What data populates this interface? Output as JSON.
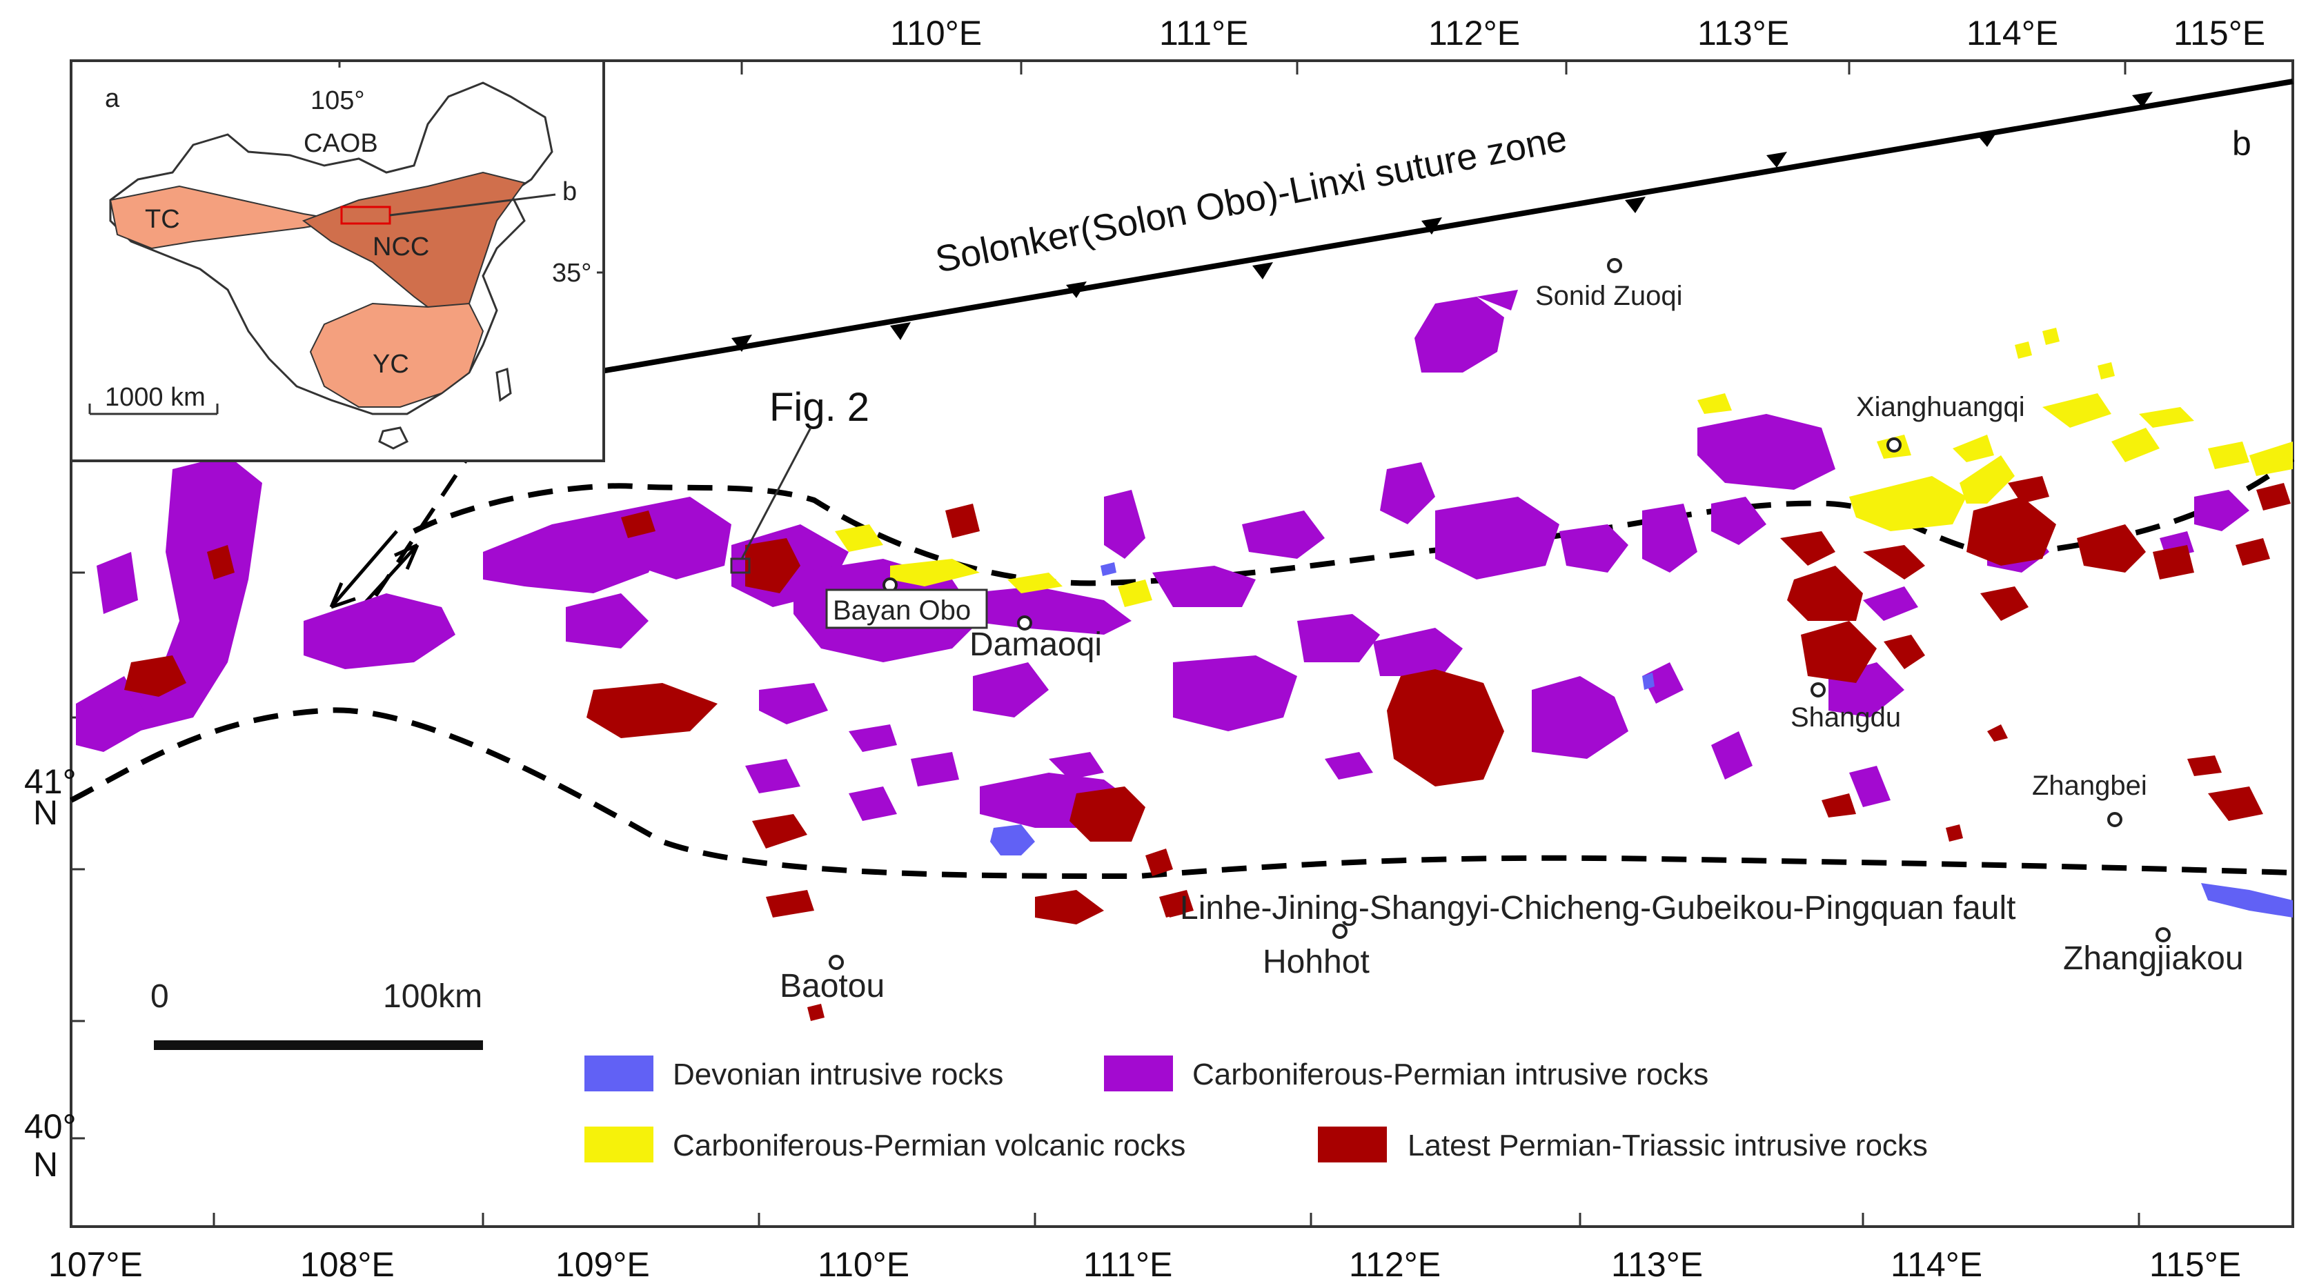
{
  "top_longitudes": [
    "110°E",
    "111°E",
    "112°E",
    "113°E",
    "114°E",
    "115°E"
  ],
  "bottom_longitudes": [
    "107°E",
    "108°E",
    "109°E",
    "110°E",
    "111°E",
    "112°E",
    "113°E",
    "114°E",
    "115°E"
  ],
  "latitudes": [
    {
      "deg": "41°",
      "hemi": "N"
    },
    {
      "deg": "40°",
      "hemi": "N"
    }
  ],
  "panel_label": "b",
  "suture_label": "Solonker(Solon Obo)-Linxi suture zone",
  "fault_label": "Linhe-Jining-Shangyi-Chicheng-Gubeikou-Pingquan fault",
  "fig_callout": "Fig. 2",
  "places": {
    "sonid_zuoqi": "Sonid Zuoqi",
    "xianghuangqi": "Xianghuangqi",
    "bayan_obo": "Bayan Obo",
    "damaoqi": "Damaoqi",
    "shangdu": "Shangdu",
    "zhangbei": "Zhangbei",
    "hohhot": "Hohhot",
    "baotou": "Baotou",
    "zhangjiakou": "Zhangjiakou"
  },
  "scale_bar": {
    "zero": "0",
    "end": "100km"
  },
  "legend": [
    {
      "label": "Devonian intrusive rocks",
      "color": "#6161f5"
    },
    {
      "label": "Carboniferous-Permian intrusive rocks",
      "color": "#a30ad0"
    },
    {
      "label": "Carboniferous-Permian volcanic rocks",
      "color": "#f6f20a"
    },
    {
      "label": "Latest Permian-Triassic intrusive rocks",
      "color": "#a80000"
    }
  ],
  "inset": {
    "label": "a",
    "lon": "105°",
    "lat": "35°",
    "caob": "CAOB",
    "tc": "TC",
    "ncc": "NCC",
    "yc": "YC",
    "b_pointer": "b",
    "scale": "1000 km",
    "colors": {
      "light": "#f4a07e",
      "dark": "#d06f4c"
    }
  }
}
